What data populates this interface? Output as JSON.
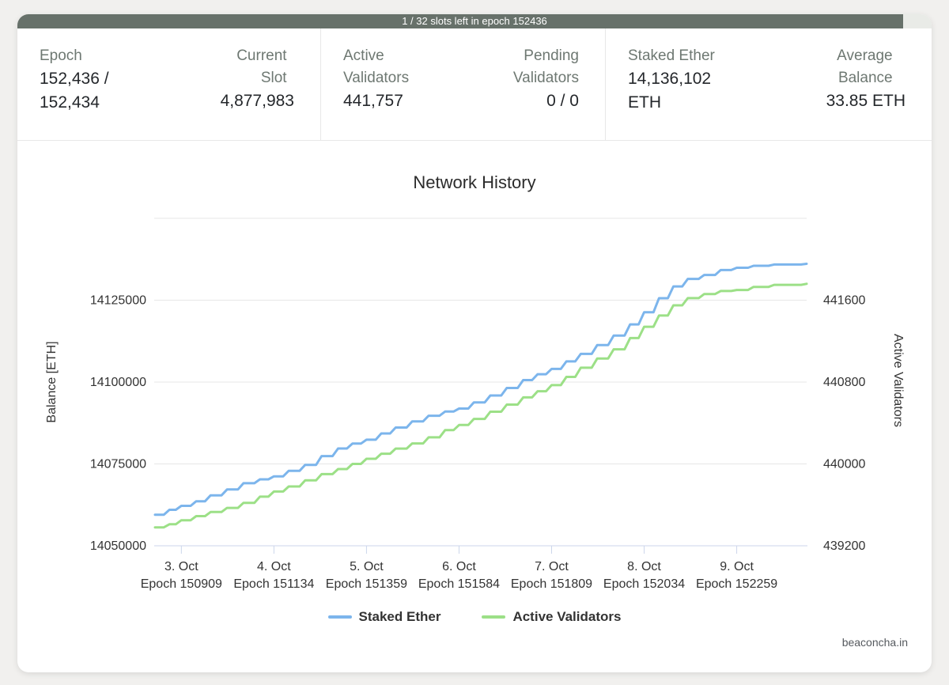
{
  "progress": {
    "text": "1 / 32 slots left in epoch 152436",
    "fraction": 0.969,
    "bar_color": "#67716a",
    "track_color": "#e9ebe7"
  },
  "stats": [
    {
      "label": "Epoch",
      "value": "152,436 / 152,434"
    },
    {
      "label": "Current Slot",
      "value": "4,877,983"
    },
    {
      "label": "Active Validators",
      "value": "441,757"
    },
    {
      "label": "Pending Validators",
      "value": "0 / 0"
    },
    {
      "label": "Staked Ether",
      "value": "14,136,102 ETH"
    },
    {
      "label": "Average Balance",
      "value": "33.85 ETH"
    }
  ],
  "chart_data": {
    "type": "line",
    "step": true,
    "grid": true,
    "title": "Network History",
    "legend_position": "bottom",
    "x_range": [
      150843,
      152429
    ],
    "x_ticks": [
      {
        "date": "3. Oct",
        "epoch_label": "Epoch 150909",
        "epoch": 150909
      },
      {
        "date": "4. Oct",
        "epoch_label": "Epoch 151134",
        "epoch": 151134
      },
      {
        "date": "5. Oct",
        "epoch_label": "Epoch 151359",
        "epoch": 151359
      },
      {
        "date": "6. Oct",
        "epoch_label": "Epoch 151584",
        "epoch": 151584
      },
      {
        "date": "7. Oct",
        "epoch_label": "Epoch 151809",
        "epoch": 151809
      },
      {
        "date": "8. Oct",
        "epoch_label": "Epoch 152034",
        "epoch": 152034
      },
      {
        "date": "9. Oct",
        "epoch_label": "Epoch 152259",
        "epoch": 152259
      }
    ],
    "y_left": {
      "title": "Balance [ETH]",
      "ticks": [
        14050000,
        14075000,
        14100000,
        14125000
      ],
      "range": [
        14050000,
        14150000
      ]
    },
    "y_right": {
      "title": "Active Validators",
      "ticks": [
        439200,
        440000,
        440800,
        441600
      ],
      "range": [
        439200,
        442400
      ]
    },
    "series": [
      {
        "name": "Staked Ether",
        "axis": "left",
        "color": "#7cb5ec",
        "points": [
          [
            150845,
            14059500
          ],
          [
            150880,
            14061000
          ],
          [
            150909,
            14062200
          ],
          [
            150945,
            14063600
          ],
          [
            150980,
            14065400
          ],
          [
            151020,
            14067200
          ],
          [
            151060,
            14069100
          ],
          [
            151100,
            14070300
          ],
          [
            151134,
            14071200
          ],
          [
            151170,
            14072900
          ],
          [
            151210,
            14074700
          ],
          [
            151250,
            14077400
          ],
          [
            151290,
            14079700
          ],
          [
            151325,
            14081200
          ],
          [
            151359,
            14082400
          ],
          [
            151395,
            14084300
          ],
          [
            151430,
            14086100
          ],
          [
            151470,
            14088000
          ],
          [
            151510,
            14089700
          ],
          [
            151550,
            14091000
          ],
          [
            151584,
            14091900
          ],
          [
            151620,
            14093800
          ],
          [
            151660,
            14095900
          ],
          [
            151700,
            14098200
          ],
          [
            151740,
            14100600
          ],
          [
            151775,
            14102400
          ],
          [
            151809,
            14104000
          ],
          [
            151845,
            14106300
          ],
          [
            151880,
            14108600
          ],
          [
            151920,
            14111300
          ],
          [
            151960,
            14114200
          ],
          [
            152000,
            14117600
          ],
          [
            152034,
            14121300
          ],
          [
            152070,
            14125600
          ],
          [
            152105,
            14129200
          ],
          [
            152140,
            14131500
          ],
          [
            152180,
            14132700
          ],
          [
            152220,
            14134200
          ],
          [
            152259,
            14134900
          ],
          [
            152300,
            14135500
          ],
          [
            152350,
            14135900
          ],
          [
            152429,
            14136100
          ]
        ]
      },
      {
        "name": "Active Validators",
        "axis": "right",
        "color": "#9ce087",
        "points": [
          [
            150845,
            439380
          ],
          [
            150880,
            439410
          ],
          [
            150909,
            439450
          ],
          [
            150945,
            439490
          ],
          [
            150980,
            439530
          ],
          [
            151020,
            439570
          ],
          [
            151060,
            439620
          ],
          [
            151100,
            439680
          ],
          [
            151134,
            439730
          ],
          [
            151170,
            439780
          ],
          [
            151210,
            439840
          ],
          [
            151250,
            439900
          ],
          [
            151290,
            439950
          ],
          [
            151325,
            440000
          ],
          [
            151359,
            440050
          ],
          [
            151395,
            440100
          ],
          [
            151430,
            440150
          ],
          [
            151470,
            440200
          ],
          [
            151510,
            440260
          ],
          [
            151550,
            440330
          ],
          [
            151584,
            440380
          ],
          [
            151620,
            440440
          ],
          [
            151660,
            440510
          ],
          [
            151700,
            440580
          ],
          [
            151740,
            440650
          ],
          [
            151775,
            440710
          ],
          [
            151809,
            440770
          ],
          [
            151845,
            440850
          ],
          [
            151880,
            440940
          ],
          [
            151920,
            441030
          ],
          [
            151960,
            441120
          ],
          [
            152000,
            441230
          ],
          [
            152034,
            441340
          ],
          [
            152070,
            441450
          ],
          [
            152105,
            441550
          ],
          [
            152140,
            441620
          ],
          [
            152180,
            441660
          ],
          [
            152220,
            441690
          ],
          [
            152259,
            441700
          ],
          [
            152300,
            441730
          ],
          [
            152350,
            441750
          ],
          [
            152429,
            441760
          ]
        ]
      }
    ]
  },
  "footer": {
    "watermark": "beaconcha.in"
  }
}
